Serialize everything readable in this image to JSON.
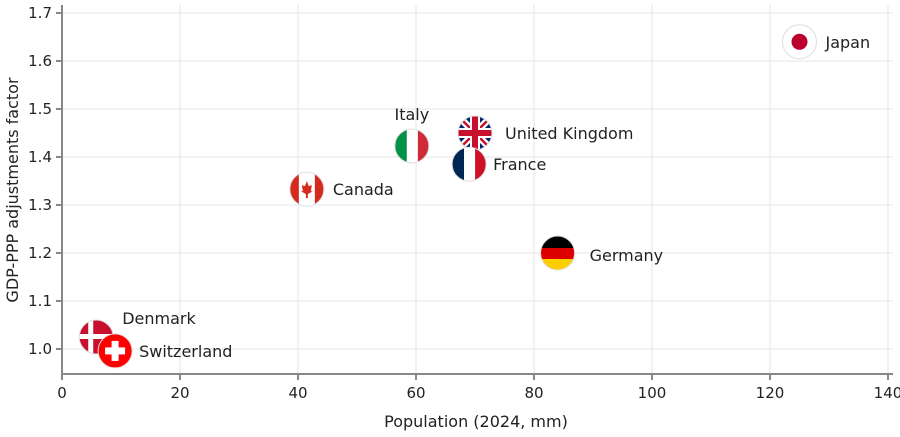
{
  "chart_data": {
    "type": "scatter",
    "xlabel": "Population (2024, mm)",
    "ylabel": "GDP-PPP adjustments factor",
    "xlim": [
      0,
      142
    ],
    "ylim": [
      0.95,
      1.7
    ],
    "xticks": [
      "0",
      "20",
      "40",
      "60",
      "80",
      "100",
      "120",
      "140"
    ],
    "yticks": [
      "1.0",
      "1.1",
      "1.2",
      "1.3",
      "1.4",
      "1.5",
      "1.6",
      "1.7"
    ],
    "grid": true,
    "marker": "country-flag",
    "points": [
      {
        "label": "Japan",
        "x": 125,
        "y": 1.64,
        "flag": "japan"
      },
      {
        "label": "United Kingdom",
        "x": 70,
        "y": 1.45,
        "flag": "uk"
      },
      {
        "label": "France",
        "x": 69,
        "y": 1.385,
        "flag": "france"
      },
      {
        "label": "Italy",
        "x": 59.3,
        "y": 1.423,
        "flag": "italy"
      },
      {
        "label": "Canada",
        "x": 41.5,
        "y": 1.333,
        "flag": "canada"
      },
      {
        "label": "Germany",
        "x": 84,
        "y": 1.2,
        "flag": "germany"
      },
      {
        "label": "Denmark",
        "x": 5.8,
        "y": 1.025,
        "flag": "denmark"
      },
      {
        "label": "Switzerland",
        "x": 9,
        "y": 0.996,
        "flag": "switzerland"
      }
    ]
  }
}
